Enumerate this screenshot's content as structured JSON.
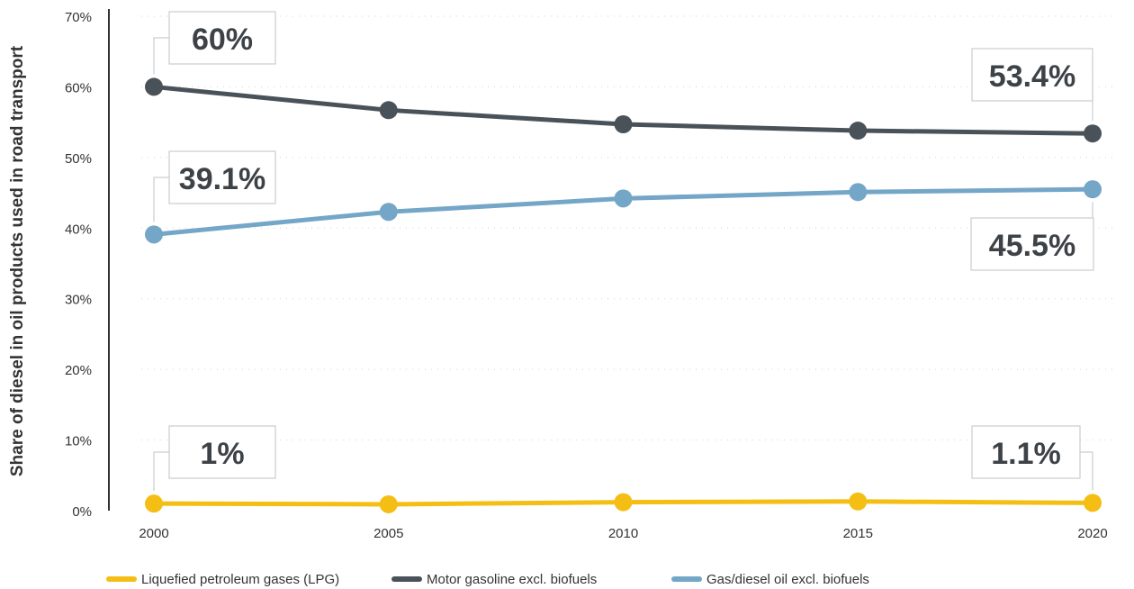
{
  "chart_data": {
    "type": "line",
    "title": "",
    "xlabel": "",
    "ylabel": "Share of diesel in oil products used in road transport",
    "categories": [
      "2000",
      "2005",
      "2010",
      "2015",
      "2020"
    ],
    "y_ticks": [
      "0%",
      "10%",
      "20%",
      "30%",
      "40%",
      "50%",
      "60%",
      "70%"
    ],
    "ylim": [
      0,
      70
    ],
    "grid": "horizontal dotted",
    "legend_position": "bottom",
    "series": [
      {
        "name": "Liquefied petroleum gases (LPG)",
        "color": "#f5be14",
        "values": [
          1.0,
          0.9,
          1.2,
          1.3,
          1.1
        ]
      },
      {
        "name": "Motor gasoline excl. biofuels",
        "color": "#4a5259",
        "values": [
          60.0,
          56.7,
          54.7,
          53.8,
          53.4
        ]
      },
      {
        "name": "Gas/diesel oil excl. biofuels",
        "color": "#74a6c8",
        "values": [
          39.1,
          42.3,
          44.2,
          45.1,
          45.5
        ]
      }
    ],
    "annotations": [
      {
        "text": "60%",
        "series": 1,
        "point": 0
      },
      {
        "text": "53.4%",
        "series": 1,
        "point": 4
      },
      {
        "text": "39.1%",
        "series": 2,
        "point": 0
      },
      {
        "text": "45.5%",
        "series": 2,
        "point": 4
      },
      {
        "text": "1%",
        "series": 0,
        "point": 0
      },
      {
        "text": "1.1%",
        "series": 0,
        "point": 4
      }
    ]
  }
}
